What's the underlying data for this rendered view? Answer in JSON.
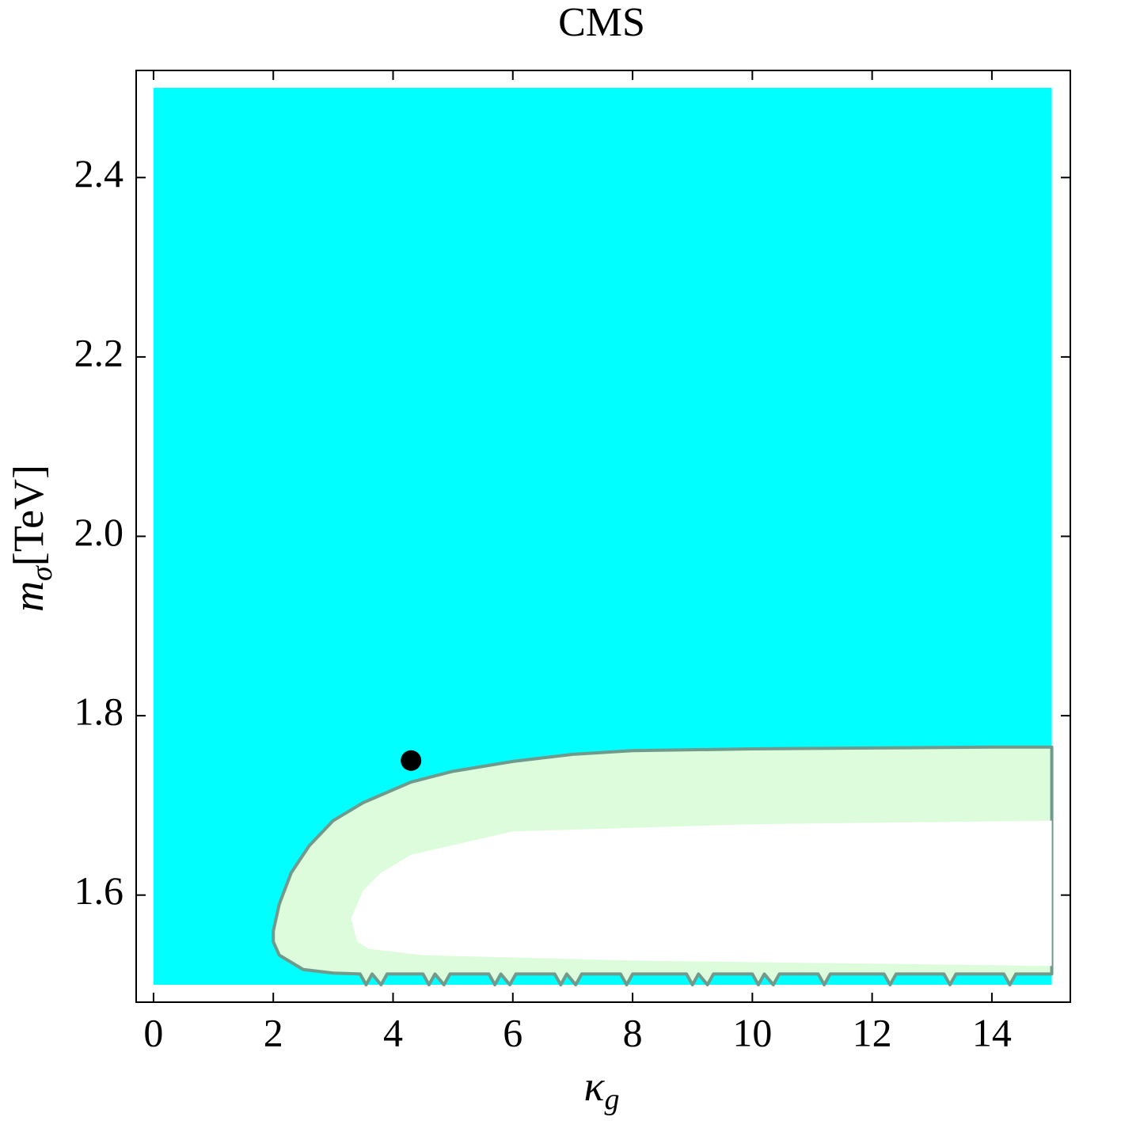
{
  "chart_data": {
    "type": "contour",
    "title": "CMS",
    "xlabel": {
      "main": "κ",
      "sub": "g"
    },
    "ylabel": {
      "main": "m",
      "sub": "σ",
      "unit": "[TeV]"
    },
    "xlim": [
      -0.29,
      15.31
    ],
    "ylim": [
      1.4806,
      2.5194
    ],
    "xticks": [
      0,
      2,
      4,
      6,
      8,
      10,
      12,
      14
    ],
    "yticks": [
      1.6,
      1.8,
      {
        "value": 2,
        "label": "2.0"
      },
      2.2,
      2.4
    ],
    "regions": [
      {
        "color": "#00ffff",
        "x": [
          0,
          15,
          15,
          0
        ],
        "y": [
          1.5,
          1.5,
          2.5,
          2.5
        ]
      },
      {
        "color": "#dcfcdc",
        "stroke": "#6f9a8c",
        "x": [
          15,
          14,
          12,
          10,
          8,
          7,
          6,
          5,
          4.3,
          3.5,
          3,
          2.6,
          2.3,
          2.1,
          2.0,
          2.0,
          2.1,
          2.5,
          3.0,
          3.45,
          3.55,
          3.65,
          3.8,
          3.9,
          4.5,
          4.6,
          4.7,
          4.85,
          4.95,
          5.6,
          5.7,
          5.8,
          5.95,
          6.05,
          6.7,
          6.8,
          6.9,
          7.05,
          7.15,
          7.8,
          7.9,
          8.0,
          8.9,
          9.0,
          9.1,
          9.25,
          9.35,
          10.0,
          10.1,
          10.2,
          10.35,
          10.45,
          11.1,
          11.2,
          11.3,
          12.2,
          12.3,
          12.4,
          13.2,
          13.3,
          13.4,
          14.2,
          14.3,
          14.4,
          15
        ],
        "y": [
          1.765,
          1.765,
          1.764,
          1.763,
          1.761,
          1.757,
          1.749,
          1.738,
          1.726,
          1.703,
          1.683,
          1.655,
          1.625,
          1.59,
          1.56,
          1.548,
          1.533,
          1.517,
          1.513,
          1.512,
          1.5,
          1.512,
          1.5,
          1.512,
          1.512,
          1.5,
          1.512,
          1.5,
          1.512,
          1.512,
          1.5,
          1.512,
          1.5,
          1.512,
          1.512,
          1.5,
          1.512,
          1.5,
          1.512,
          1.512,
          1.5,
          1.512,
          1.512,
          1.5,
          1.512,
          1.5,
          1.512,
          1.512,
          1.5,
          1.512,
          1.5,
          1.512,
          1.512,
          1.5,
          1.512,
          1.512,
          1.5,
          1.512,
          1.512,
          1.5,
          1.512,
          1.512,
          1.5,
          1.512,
          1.512
        ]
      },
      {
        "color": "#ffffff",
        "x": [
          15,
          10,
          6,
          4.3,
          3.8,
          3.5,
          3.3,
          3.4,
          3.6,
          4.5,
          8,
          15
        ],
        "y": [
          1.683,
          1.679,
          1.671,
          1.645,
          1.625,
          1.605,
          1.574,
          1.548,
          1.54,
          1.533,
          1.527,
          1.521
        ]
      }
    ],
    "points": {
      "color": "#000000",
      "x": [
        4.3
      ],
      "y": [
        1.75
      ]
    }
  }
}
